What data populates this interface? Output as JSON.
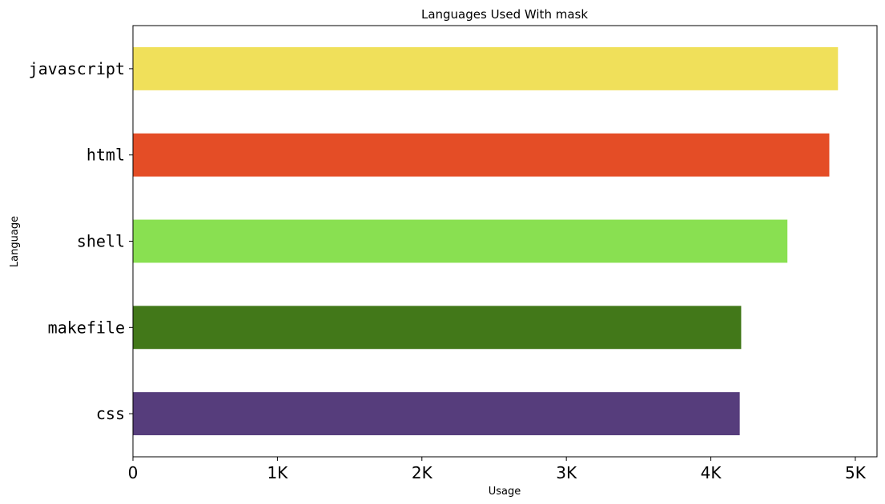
{
  "chart_data": {
    "type": "bar",
    "orientation": "horizontal",
    "title": "Languages Used With mask",
    "xlabel": "Usage",
    "ylabel": "Language",
    "categories": [
      "javascript",
      "html",
      "shell",
      "makefile",
      "css"
    ],
    "values": [
      4880,
      4820,
      4530,
      4210,
      4200
    ],
    "colors": [
      "#f0e05a",
      "#e44d26",
      "#89e051",
      "#427819",
      "#563d7c"
    ],
    "xlim": [
      0,
      5150
    ],
    "xticks": [
      0,
      1000,
      2000,
      3000,
      4000,
      5000
    ],
    "xtick_labels": [
      "0",
      "1K",
      "2K",
      "3K",
      "4K",
      "5K"
    ],
    "grid": false,
    "legend": "none"
  }
}
